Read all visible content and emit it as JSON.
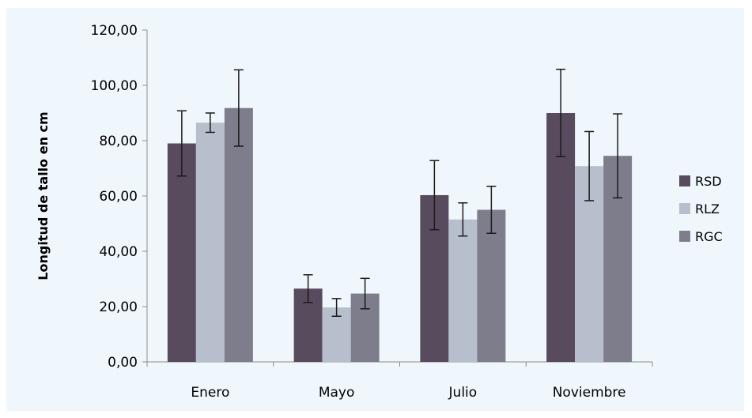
{
  "colors": {
    "background": "#f0f7fc",
    "axis": "#8c8c8c",
    "error_bar": "#1a1a1a"
  },
  "chart_data": {
    "type": "bar",
    "title": "",
    "xlabel": "",
    "ylabel": "Longitud de tallo en cm",
    "ylim": [
      0,
      120
    ],
    "yticks": [
      0,
      20,
      40,
      60,
      80,
      100,
      120
    ],
    "ytick_labels": [
      "0,00",
      "20,00",
      "40,00",
      "60,00",
      "80,00",
      "100,00",
      "120,00"
    ],
    "categories": [
      "Enero",
      "Mayo",
      "Julio",
      "Noviembre"
    ],
    "grid": false,
    "legend_position": "right",
    "series": [
      {
        "name": "RSD",
        "color": "#584b5e",
        "values": [
          79,
          26.5,
          60.3,
          90
        ],
        "errors": [
          11.8,
          5,
          12.5,
          15.8
        ]
      },
      {
        "name": "RLZ",
        "color": "#b8bfcc",
        "values": [
          86.5,
          19.7,
          51.5,
          70.8
        ],
        "errors": [
          3.5,
          3.2,
          6,
          12.5
        ]
      },
      {
        "name": "RGC",
        "color": "#7e7d8b",
        "values": [
          91.8,
          24.7,
          55,
          74.5
        ],
        "errors": [
          13.8,
          5.5,
          8.5,
          15.2
        ]
      }
    ]
  }
}
